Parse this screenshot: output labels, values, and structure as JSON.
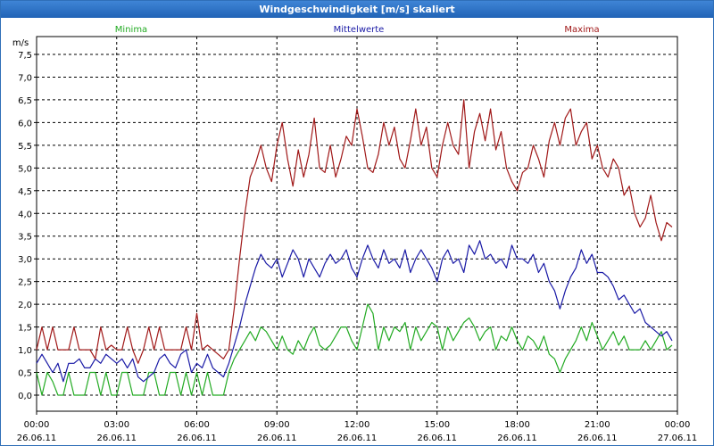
{
  "window": {
    "title": "Windgeschwindigkeit [m/s] skaliert"
  },
  "chart_data": {
    "type": "line",
    "title": "Windgeschwindigkeit [m/s] skaliert",
    "ylabel": "m/s",
    "xlabel": "",
    "ylim": [
      0,
      7.5
    ],
    "xlim": [
      "2011-06-26 00:00",
      "2011-06-27 00:00"
    ],
    "grid": true,
    "legend_position": "top",
    "y_ticks": [
      "0,0",
      "0,5",
      "1,0",
      "1,5",
      "2,0",
      "2,5",
      "3,0",
      "3,5",
      "4,0",
      "4,5",
      "5,0",
      "5,5",
      "6,0",
      "6,5",
      "7,0",
      "7,5"
    ],
    "x_ticks": [
      {
        "time": "00:00",
        "date": "26.06.11"
      },
      {
        "time": "03:00",
        "date": "26.06.11"
      },
      {
        "time": "06:00",
        "date": "26.06.11"
      },
      {
        "time": "09:00",
        "date": "26.06.11"
      },
      {
        "time": "12:00",
        "date": "26.06.11"
      },
      {
        "time": "15:00",
        "date": "26.06.11"
      },
      {
        "time": "18:00",
        "date": "26.06.11"
      },
      {
        "time": "21:00",
        "date": "26.06.11"
      },
      {
        "time": "00:00",
        "date": "27.06.11"
      }
    ],
    "x_hours": [
      0.0,
      0.2,
      0.4,
      0.6,
      0.8,
      1.0,
      1.2,
      1.4,
      1.6,
      1.8,
      2.0,
      2.2,
      2.4,
      2.6,
      2.8,
      3.0,
      3.2,
      3.4,
      3.6,
      3.8,
      4.0,
      4.2,
      4.4,
      4.6,
      4.8,
      5.0,
      5.2,
      5.4,
      5.6,
      5.8,
      6.0,
      6.2,
      6.4,
      6.6,
      6.8,
      7.0,
      7.2,
      7.4,
      7.6,
      7.8,
      8.0,
      8.2,
      8.4,
      8.6,
      8.8,
      9.0,
      9.2,
      9.4,
      9.6,
      9.8,
      10.0,
      10.2,
      10.4,
      10.6,
      10.8,
      11.0,
      11.2,
      11.4,
      11.6,
      11.8,
      12.0,
      12.2,
      12.4,
      12.6,
      12.8,
      13.0,
      13.2,
      13.4,
      13.6,
      13.8,
      14.0,
      14.2,
      14.4,
      14.6,
      14.8,
      15.0,
      15.2,
      15.4,
      15.6,
      15.8,
      16.0,
      16.2,
      16.4,
      16.6,
      16.8,
      17.0,
      17.2,
      17.4,
      17.6,
      17.8,
      18.0,
      18.2,
      18.4,
      18.6,
      18.8,
      19.0,
      19.2,
      19.4,
      19.6,
      19.8,
      20.0,
      20.2,
      20.4,
      20.6,
      20.8,
      21.0,
      21.2,
      21.4,
      21.6,
      21.8,
      22.0,
      22.2,
      22.4,
      22.6,
      22.8,
      23.0,
      23.2,
      23.4,
      23.6,
      23.8
    ],
    "series": [
      {
        "name": "Minima",
        "color": "#22aa22",
        "values": [
          0.5,
          0.0,
          0.5,
          0.3,
          0.0,
          0.0,
          0.5,
          0.0,
          0.0,
          0.0,
          0.5,
          0.5,
          0.0,
          0.5,
          0.0,
          0.0,
          0.5,
          0.5,
          0.0,
          0.0,
          0.0,
          0.5,
          0.5,
          0.0,
          0.0,
          0.5,
          0.5,
          0.0,
          0.5,
          0.0,
          0.5,
          0.0,
          0.5,
          0.0,
          0.0,
          0.0,
          0.5,
          0.8,
          1.0,
          1.2,
          1.4,
          1.2,
          1.5,
          1.4,
          1.2,
          1.0,
          1.3,
          1.0,
          0.9,
          1.2,
          1.0,
          1.3,
          1.5,
          1.1,
          1.0,
          1.1,
          1.3,
          1.5,
          1.5,
          1.2,
          1.0,
          1.5,
          2.0,
          1.8,
          1.0,
          1.5,
          1.2,
          1.5,
          1.4,
          1.6,
          1.0,
          1.5,
          1.2,
          1.4,
          1.6,
          1.5,
          1.0,
          1.5,
          1.2,
          1.4,
          1.6,
          1.7,
          1.5,
          1.2,
          1.4,
          1.5,
          1.0,
          1.3,
          1.2,
          1.5,
          1.2,
          1.0,
          1.3,
          1.2,
          1.0,
          1.3,
          0.9,
          0.8,
          0.5,
          0.8,
          1.0,
          1.2,
          1.5,
          1.2,
          1.6,
          1.3,
          1.0,
          1.2,
          1.4,
          1.1,
          1.3,
          1.0,
          1.0,
          1.0,
          1.2,
          1.0,
          1.2,
          1.4,
          1.0,
          1.1
        ]
      },
      {
        "name": "Mittelwerte",
        "color": "#1a1aa6",
        "values": [
          0.7,
          0.9,
          0.7,
          0.5,
          0.7,
          0.3,
          0.7,
          0.7,
          0.8,
          0.6,
          0.6,
          0.8,
          0.7,
          0.9,
          0.8,
          0.7,
          0.8,
          0.6,
          0.8,
          0.4,
          0.3,
          0.4,
          0.5,
          0.8,
          0.9,
          0.7,
          0.6,
          0.9,
          1.0,
          0.5,
          0.7,
          0.6,
          0.9,
          0.6,
          0.5,
          0.4,
          0.7,
          1.1,
          1.5,
          2.0,
          2.4,
          2.8,
          3.1,
          2.9,
          2.8,
          3.0,
          2.6,
          2.9,
          3.2,
          3.0,
          2.6,
          3.0,
          2.8,
          2.6,
          2.9,
          3.1,
          2.9,
          3.0,
          3.2,
          2.8,
          2.6,
          3.0,
          3.3,
          3.0,
          2.8,
          3.2,
          2.9,
          3.0,
          2.8,
          3.2,
          2.7,
          3.0,
          3.2,
          3.0,
          2.8,
          2.5,
          3.0,
          3.2,
          2.9,
          3.0,
          2.7,
          3.3,
          3.1,
          3.4,
          3.0,
          3.1,
          2.9,
          3.0,
          2.8,
          3.3,
          3.0,
          3.0,
          2.9,
          3.1,
          2.7,
          2.9,
          2.5,
          2.3,
          1.9,
          2.3,
          2.6,
          2.8,
          3.2,
          2.9,
          3.1,
          2.7,
          2.7,
          2.6,
          2.4,
          2.1,
          2.2,
          2.0,
          1.8,
          1.9,
          1.6,
          1.5,
          1.4,
          1.3,
          1.4,
          1.2
        ]
      },
      {
        "name": "Maxima",
        "color": "#a01818",
        "values": [
          1.0,
          1.5,
          1.0,
          1.5,
          1.0,
          1.0,
          1.0,
          1.5,
          1.0,
          1.0,
          1.0,
          0.8,
          1.5,
          1.0,
          1.1,
          1.0,
          1.0,
          1.5,
          1.0,
          0.7,
          1.0,
          1.5,
          1.0,
          1.5,
          1.0,
          1.0,
          1.0,
          1.0,
          1.5,
          1.0,
          1.8,
          1.0,
          1.1,
          1.0,
          0.9,
          0.8,
          1.0,
          1.9,
          3.0,
          4.0,
          4.8,
          5.1,
          5.5,
          5.0,
          4.7,
          5.5,
          6.0,
          5.2,
          4.6,
          5.4,
          4.8,
          5.3,
          6.1,
          5.0,
          4.9,
          5.5,
          4.8,
          5.2,
          5.7,
          5.5,
          6.3,
          5.7,
          5.0,
          4.9,
          5.3,
          6.0,
          5.5,
          5.9,
          5.2,
          5.0,
          5.6,
          6.3,
          5.5,
          5.9,
          5.0,
          4.8,
          5.5,
          6.0,
          5.5,
          5.3,
          6.5,
          5.0,
          5.8,
          6.2,
          5.6,
          6.3,
          5.4,
          5.8,
          5.0,
          4.7,
          4.5,
          4.9,
          5.0,
          5.5,
          5.2,
          4.8,
          5.6,
          6.0,
          5.5,
          6.1,
          6.3,
          5.5,
          5.8,
          6.0,
          5.2,
          5.5,
          5.0,
          4.8,
          5.2,
          5.0,
          4.4,
          4.6,
          4.0,
          3.7,
          3.9,
          4.4,
          3.8,
          3.4,
          3.8,
          3.7
        ]
      }
    ],
    "_note": "values are read approximately from the chart"
  }
}
